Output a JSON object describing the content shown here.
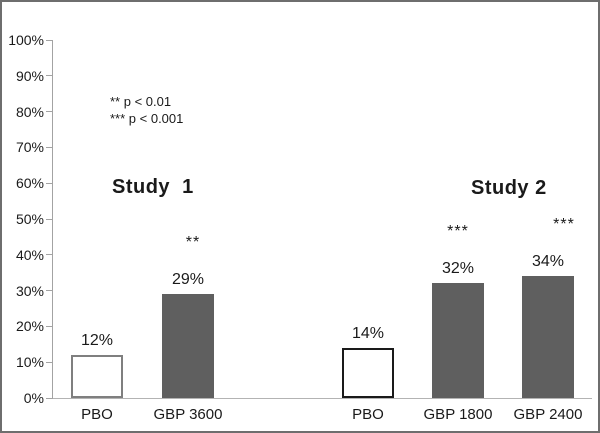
{
  "chart_data": {
    "type": "bar",
    "title": "",
    "xlabel": "",
    "ylabel": "",
    "y_axis": {
      "min": 0,
      "max": 100,
      "tick_step": 10,
      "tick_labels": [
        "0%",
        "10%",
        "20%",
        "30%",
        "40%",
        "50%",
        "60%",
        "70%",
        "80%",
        "90%",
        "100%"
      ]
    },
    "legend": {
      "position": "upper-left",
      "lines": [
        "** p < 0.01",
        "*** p < 0.001"
      ]
    },
    "grid": false,
    "groups": [
      {
        "title": "Study  1",
        "bars": [
          {
            "category": "PBO",
            "value": 12,
            "value_label": "12%",
            "significance": "",
            "fill": "#ffffff",
            "border": "#7f7f7f"
          },
          {
            "category": "GBP 3600",
            "value": 29,
            "value_label": "29%",
            "significance": "**",
            "fill": "#5f5f5f",
            "border": ""
          }
        ]
      },
      {
        "title": "Study 2",
        "bars": [
          {
            "category": "PBO",
            "value": 14,
            "value_label": "14%",
            "significance": "",
            "fill": "#ffffff",
            "border": "#1a1a1a"
          },
          {
            "category": "GBP 1800",
            "value": 32,
            "value_label": "32%",
            "significance": "***",
            "fill": "#5f5f5f",
            "border": ""
          },
          {
            "category": "GBP 2400",
            "value": 34,
            "value_label": "34%",
            "significance": "***",
            "fill": "#5f5f5f",
            "border": ""
          }
        ]
      }
    ],
    "colors": {
      "treatment_bar": "#5f5f5f",
      "placebo_fill": "#ffffff",
      "axis_line": "#a3a3a3",
      "text": "#1a1a1a",
      "frame_border": "#6e6e6e"
    }
  }
}
